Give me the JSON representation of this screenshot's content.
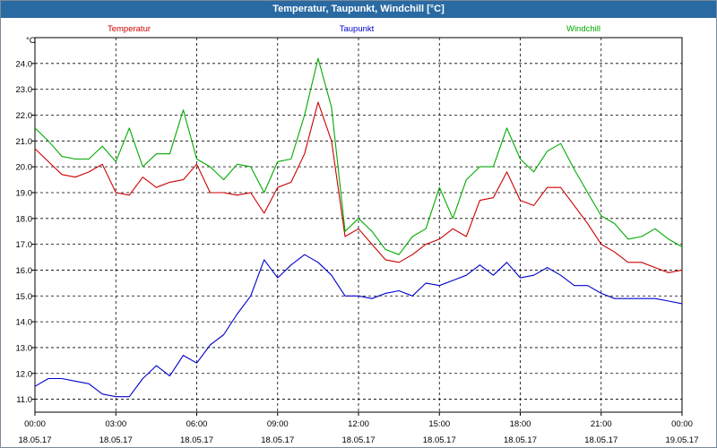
{
  "window": {
    "title": "Temperatur, Taupunkt, Windchill [°C]"
  },
  "chart_data": {
    "type": "line",
    "title": "Temperatur, Taupunkt, Windchill [°C]",
    "ylabel": "°C",
    "ylim": [
      10.5,
      25.0
    ],
    "yticks": [
      11.0,
      12.0,
      13.0,
      14.0,
      15.0,
      16.0,
      17.0,
      18.0,
      19.0,
      20.0,
      21.0,
      22.0,
      23.0,
      24.0
    ],
    "xlim": [
      0,
      24
    ],
    "xticks": [
      {
        "time": "00:00",
        "date": "18.05.17"
      },
      {
        "time": "03:00",
        "date": "18.05.17"
      },
      {
        "time": "06:00",
        "date": "18.05.17"
      },
      {
        "time": "09:00",
        "date": "18.05.17"
      },
      {
        "time": "12:00",
        "date": "18.05.17"
      },
      {
        "time": "15:00",
        "date": "18.05.17"
      },
      {
        "time": "18:00",
        "date": "18.05.17"
      },
      {
        "time": "21:00",
        "date": "18.05.17"
      },
      {
        "time": "00:00",
        "date": "19.05.17"
      }
    ],
    "grid": true,
    "legend_position": "top",
    "x": [
      0,
      0.5,
      1,
      1.5,
      2,
      2.5,
      3,
      3.5,
      4,
      4.5,
      5,
      5.5,
      6,
      6.5,
      7,
      7.5,
      8,
      8.5,
      9,
      9.5,
      10,
      10.5,
      11,
      11.5,
      12,
      12.5,
      13,
      13.5,
      14,
      14.5,
      15,
      15.5,
      16,
      16.5,
      17,
      17.5,
      18,
      18.5,
      19,
      19.5,
      20,
      20.5,
      21,
      21.5,
      22,
      22.5,
      23,
      23.5,
      24
    ],
    "series": [
      {
        "name": "Temperatur",
        "color": "#cc0000",
        "values": [
          20.7,
          20.2,
          19.7,
          19.6,
          19.8,
          20.1,
          19.0,
          18.9,
          19.6,
          19.2,
          19.4,
          19.5,
          20.1,
          19.0,
          19.0,
          18.9,
          19.0,
          18.2,
          19.2,
          19.4,
          20.5,
          22.5,
          21.0,
          17.3,
          17.6,
          17.0,
          16.4,
          16.3,
          16.6,
          17.0,
          17.2,
          17.6,
          17.3,
          18.7,
          18.8,
          19.8,
          18.7,
          18.5,
          19.2,
          19.2,
          18.5,
          17.8,
          17.0,
          16.7,
          16.3,
          16.3,
          16.1,
          15.9,
          16.0
        ]
      },
      {
        "name": "Taupunkt",
        "color": "#0000cc",
        "values": [
          11.5,
          11.8,
          11.8,
          11.7,
          11.6,
          11.2,
          11.1,
          11.1,
          11.8,
          12.3,
          11.9,
          12.7,
          12.4,
          13.1,
          13.5,
          14.3,
          15.0,
          16.4,
          15.7,
          16.2,
          16.6,
          16.3,
          15.8,
          15.0,
          15.0,
          14.9,
          15.1,
          15.2,
          15.0,
          15.5,
          15.4,
          15.6,
          15.8,
          16.2,
          15.8,
          16.3,
          15.7,
          15.8,
          16.1,
          15.8,
          15.4,
          15.4,
          15.1,
          14.9,
          14.9,
          14.9,
          14.9,
          14.8,
          14.7
        ]
      },
      {
        "name": "Windchill",
        "color": "#00aa00",
        "values": [
          21.5,
          21.0,
          20.4,
          20.3,
          20.3,
          20.8,
          20.2,
          21.5,
          20.0,
          20.5,
          20.5,
          22.2,
          20.3,
          20.0,
          19.5,
          20.1,
          20.0,
          19.0,
          20.2,
          20.3,
          22.0,
          24.2,
          22.3,
          17.5,
          18.0,
          17.5,
          16.8,
          16.6,
          17.3,
          17.6,
          19.2,
          18.0,
          19.5,
          20.0,
          20.0,
          21.5,
          20.3,
          19.8,
          20.6,
          20.9,
          19.9,
          19.0,
          18.1,
          17.8,
          17.2,
          17.3,
          17.6,
          17.2,
          16.9
        ]
      }
    ]
  }
}
